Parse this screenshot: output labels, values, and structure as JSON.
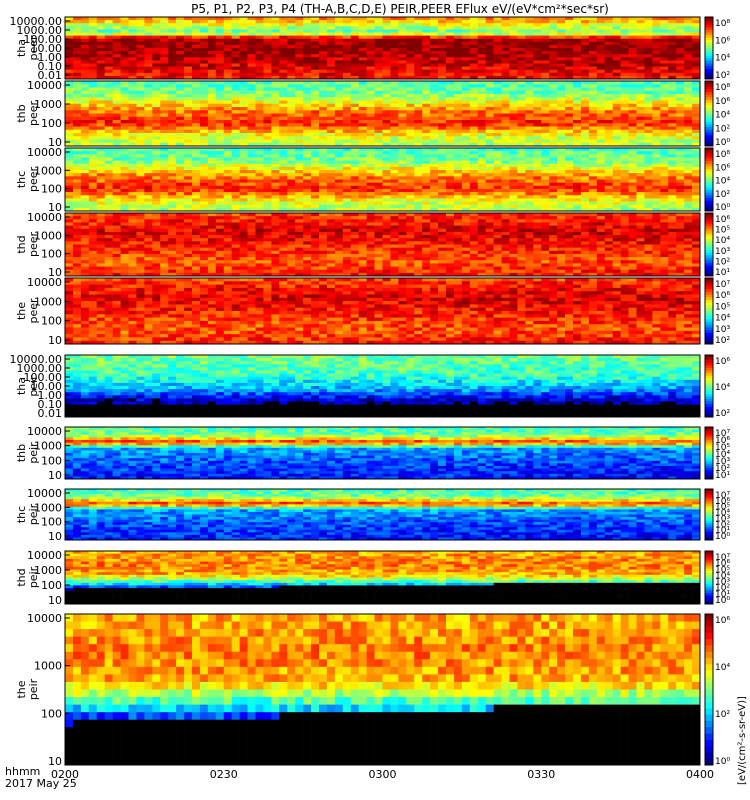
{
  "title": "P5, P1, P2, P3, P4 (TH-A,B,C,D,E) PEIR,PEER EFlux eV/(eV*cm²*sec*sr)",
  "chart_data": {
    "type": "heatmap",
    "title": "P5, P1, P2, P3, P4 (TH-A,B,C,D,E) PEIR,PEER EFlux eV/(eV*cm²*sec*sr)",
    "x_label_line1": "hhmm",
    "x_label_line2": "2017 May 25",
    "x_ticks": [
      "0200",
      "0230",
      "0300",
      "0330",
      "0400"
    ],
    "colorbar_label": "[eV/(cm²-s-sr-eV)]",
    "panels": [
      {
        "probe": "tha",
        "species": "peer",
        "yticks": [
          "10000.00",
          "1000.00",
          "100.00",
          "10.00",
          "1.00",
          "0.10",
          "0.01"
        ],
        "cbar_ticks": [
          "10⁸",
          "10⁶",
          "10⁴",
          "10²"
        ],
        "flux_level": 0.75,
        "style": "electron_a"
      },
      {
        "probe": "thb",
        "species": "peer",
        "yticks": [
          "10000",
          "1000",
          "100",
          "10"
        ],
        "cbar_ticks": [
          "10⁸",
          "10⁶",
          "10⁴",
          "10²",
          "10⁰"
        ],
        "flux_level": 0.55,
        "style": "electron_low"
      },
      {
        "probe": "thc",
        "species": "peer",
        "yticks": [
          "10000",
          "1000",
          "100",
          "10"
        ],
        "cbar_ticks": [
          "10⁸",
          "10⁶",
          "10⁴",
          "10²",
          "10⁰"
        ],
        "flux_level": 0.5,
        "style": "electron_low"
      },
      {
        "probe": "thd",
        "species": "peer",
        "yticks": [
          "10000",
          "1000",
          "100",
          "10"
        ],
        "cbar_ticks": [
          "10⁶",
          "10⁵",
          "10⁴",
          "10³",
          "10²",
          "10¹"
        ],
        "flux_level": 0.85,
        "style": "electron_high"
      },
      {
        "probe": "the",
        "species": "peer",
        "yticks": [
          "10000",
          "1000",
          "100",
          "10"
        ],
        "cbar_ticks": [
          "10⁷",
          "10⁶",
          "10⁵",
          "10⁴",
          "10³",
          "10²"
        ],
        "flux_level": 0.82,
        "style": "electron_high"
      },
      {
        "probe": "tha",
        "species": "peir",
        "yticks": [
          "10000.00",
          "1000.00",
          "100.00",
          "10.00",
          "1.00",
          "0.10",
          "0.01"
        ],
        "cbar_ticks": [
          "10⁶",
          "10⁴",
          "10²"
        ],
        "flux_level": 0.45,
        "style": "ion_a"
      },
      {
        "probe": "thb",
        "species": "peir",
        "yticks": [
          "10000",
          "1000",
          "100",
          "10"
        ],
        "cbar_ticks": [
          "10⁷",
          "10⁶",
          "10⁵",
          "10⁴",
          "10³",
          "10²",
          "10¹"
        ],
        "flux_level": 0.4,
        "style": "ion_bc"
      },
      {
        "probe": "thc",
        "species": "peir",
        "yticks": [
          "10000",
          "1000",
          "100",
          "10"
        ],
        "cbar_ticks": [
          "10⁷",
          "10⁶",
          "10⁵",
          "10⁴",
          "10³",
          "10²",
          "10¹",
          "10⁰"
        ],
        "flux_level": 0.4,
        "style": "ion_bc"
      },
      {
        "probe": "thd",
        "species": "peir",
        "yticks": [
          "10000",
          "1000",
          "100",
          "10"
        ],
        "cbar_ticks": [
          "10⁷",
          "10⁶",
          "10⁵",
          "10⁴",
          "10³",
          "10²",
          "10¹",
          "10⁰"
        ],
        "flux_level": 0.65,
        "style": "ion_de"
      },
      {
        "probe": "the",
        "species": "peir",
        "yticks": [
          "10000",
          "1000",
          "100",
          "10"
        ],
        "cbar_ticks": [
          "10⁶",
          "10⁴",
          "10²",
          "10⁰"
        ],
        "flux_level": 0.62,
        "style": "ion_de"
      }
    ]
  }
}
